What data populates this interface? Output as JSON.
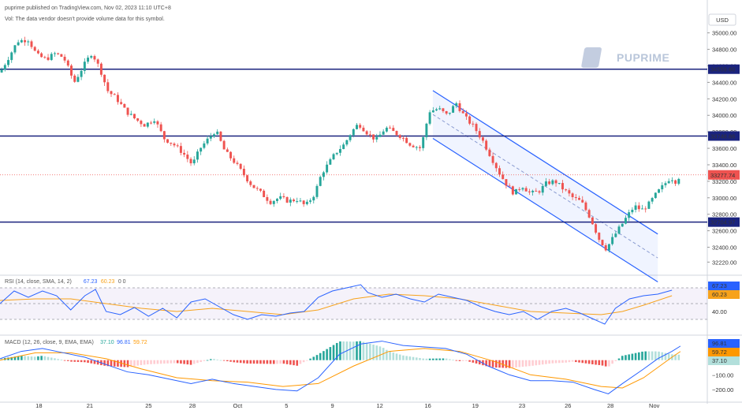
{
  "header": {
    "published": "puprime published on TradingView.com, Nov 02, 2023 11:10 UTC+8",
    "vol_note": "Vol: The data vendor doesn't provide volume data for this symbol.",
    "currency": "USD",
    "watermark": "PUPRIME"
  },
  "colors": {
    "up": "#26a69a",
    "down": "#ef5350",
    "level_line": "#1a237e",
    "channel": "#2962ff",
    "rsi_line": "#2962ff",
    "rsi_ma": "#f7a21b",
    "macd_line": "#2962ff",
    "signal_line": "#ff9800"
  },
  "chart_data": {
    "type": "candlestick",
    "symbol_unit": "USD",
    "y_range": [
      32080,
      35150
    ],
    "y_ticks": [
      "35000.00",
      "34800.00",
      "34600.00",
      "34400.00",
      "34200.00",
      "34000.00",
      "33800.00",
      "33600.00",
      "33400.00",
      "33200.00",
      "33000.00",
      "32800.00",
      "32600.00",
      "32400.00",
      "32220.00"
    ],
    "y_tick_values": [
      35000,
      34800,
      34600,
      34400,
      34200,
      34000,
      33800,
      33600,
      33400,
      33200,
      33000,
      32800,
      32600,
      32400,
      32220
    ],
    "x_labels": [
      "18",
      "21",
      "25",
      "28",
      "Oct",
      "5",
      "9",
      "12",
      "16",
      "19",
      "23",
      "26",
      "28",
      "Nov"
    ],
    "x_label_positions": [
      0.055,
      0.127,
      0.21,
      0.272,
      0.336,
      0.405,
      0.47,
      0.537,
      0.605,
      0.672,
      0.738,
      0.803,
      0.863,
      0.925
    ],
    "levels": [
      {
        "value": 34559.6,
        "label": "34559.60"
      },
      {
        "value": 33748.86,
        "label": "33748.86"
      },
      {
        "value": 32704.97,
        "label": "32704.97"
      }
    ],
    "current_price": {
      "value": 33277.74,
      "label": "33277.74"
    },
    "channel": {
      "upper": [
        [
          0.612,
          34300
        ],
        [
          0.93,
          32560
        ]
      ],
      "lower": [
        [
          0.612,
          33720
        ],
        [
          0.93,
          31980
        ]
      ],
      "mid": [
        [
          0.612,
          34010
        ],
        [
          0.93,
          32270
        ]
      ]
    },
    "price_path": [
      [
        0.0,
        34520
      ],
      [
        0.012,
        34700
      ],
      [
        0.025,
        34900
      ],
      [
        0.04,
        34920
      ],
      [
        0.052,
        34730
      ],
      [
        0.065,
        34680
      ],
      [
        0.078,
        34750
      ],
      [
        0.09,
        34700
      ],
      [
        0.105,
        34400
      ],
      [
        0.118,
        34600
      ],
      [
        0.13,
        34760
      ],
      [
        0.142,
        34550
      ],
      [
        0.152,
        34300
      ],
      [
        0.165,
        34200
      ],
      [
        0.178,
        34050
      ],
      [
        0.192,
        33950
      ],
      [
        0.205,
        33880
      ],
      [
        0.218,
        33960
      ],
      [
        0.232,
        33720
      ],
      [
        0.245,
        33650
      ],
      [
        0.258,
        33550
      ],
      [
        0.272,
        33400
      ],
      [
        0.283,
        33600
      ],
      [
        0.295,
        33720
      ],
      [
        0.305,
        33820
      ],
      [
        0.318,
        33560
      ],
      [
        0.33,
        33450
      ],
      [
        0.343,
        33300
      ],
      [
        0.356,
        33150
      ],
      [
        0.37,
        33050
      ],
      [
        0.382,
        32950
      ],
      [
        0.395,
        33000
      ],
      [
        0.408,
        32960
      ],
      [
        0.42,
        32980
      ],
      [
        0.432,
        32900
      ],
      [
        0.445,
        33050
      ],
      [
        0.455,
        33300
      ],
      [
        0.465,
        33420
      ],
      [
        0.475,
        33550
      ],
      [
        0.487,
        33650
      ],
      [
        0.497,
        33800
      ],
      [
        0.507,
        33900
      ],
      [
        0.52,
        33780
      ],
      [
        0.532,
        33700
      ],
      [
        0.545,
        33850
      ],
      [
        0.556,
        33800
      ],
      [
        0.568,
        33740
      ],
      [
        0.58,
        33650
      ],
      [
        0.595,
        33600
      ],
      [
        0.607,
        34050
      ],
      [
        0.62,
        34080
      ],
      [
        0.632,
        34000
      ],
      [
        0.645,
        34150
      ],
      [
        0.657,
        33980
      ],
      [
        0.67,
        33860
      ],
      [
        0.682,
        33700
      ],
      [
        0.694,
        33500
      ],
      [
        0.706,
        33300
      ],
      [
        0.717,
        33150
      ],
      [
        0.727,
        33050
      ],
      [
        0.738,
        33150
      ],
      [
        0.75,
        33050
      ],
      [
        0.762,
        33080
      ],
      [
        0.773,
        33180
      ],
      [
        0.785,
        33200
      ],
      [
        0.797,
        33100
      ],
      [
        0.81,
        33000
      ],
      [
        0.822,
        32950
      ],
      [
        0.835,
        32750
      ],
      [
        0.847,
        32500
      ],
      [
        0.857,
        32380
      ],
      [
        0.867,
        32520
      ],
      [
        0.877,
        32650
      ],
      [
        0.887,
        32780
      ],
      [
        0.897,
        32900
      ],
      [
        0.907,
        32850
      ],
      [
        0.917,
        32920
      ],
      [
        0.928,
        33050
      ],
      [
        0.938,
        33150
      ],
      [
        0.948,
        33250
      ],
      [
        0.955,
        33200
      ],
      [
        0.962,
        33277
      ]
    ],
    "rsi": {
      "label": "RSI (14, close, SMA, 14, 2)",
      "rsi_value": "67.23",
      "ma_value": "60.23",
      "flags": "0 0",
      "range": [
        15,
        85
      ],
      "ticks": [
        "40.00"
      ],
      "tick_values": [
        40
      ],
      "band_upper": 70,
      "band_lower": 30,
      "rsi_path": [
        [
          0.0,
          50
        ],
        [
          0.02,
          66
        ],
        [
          0.04,
          58
        ],
        [
          0.06,
          66
        ],
        [
          0.08,
          60
        ],
        [
          0.1,
          42
        ],
        [
          0.12,
          60
        ],
        [
          0.135,
          68
        ],
        [
          0.15,
          40
        ],
        [
          0.17,
          36
        ],
        [
          0.19,
          45
        ],
        [
          0.21,
          34
        ],
        [
          0.23,
          44
        ],
        [
          0.25,
          32
        ],
        [
          0.27,
          52
        ],
        [
          0.29,
          56
        ],
        [
          0.31,
          46
        ],
        [
          0.33,
          36
        ],
        [
          0.35,
          30
        ],
        [
          0.37,
          36
        ],
        [
          0.39,
          34
        ],
        [
          0.41,
          38
        ],
        [
          0.43,
          40
        ],
        [
          0.45,
          58
        ],
        [
          0.47,
          66
        ],
        [
          0.49,
          70
        ],
        [
          0.51,
          74
        ],
        [
          0.52,
          64
        ],
        [
          0.54,
          58
        ],
        [
          0.56,
          62
        ],
        [
          0.58,
          56
        ],
        [
          0.6,
          52
        ],
        [
          0.62,
          62
        ],
        [
          0.64,
          58
        ],
        [
          0.66,
          54
        ],
        [
          0.68,
          46
        ],
        [
          0.7,
          40
        ],
        [
          0.72,
          36
        ],
        [
          0.74,
          40
        ],
        [
          0.76,
          30
        ],
        [
          0.78,
          40
        ],
        [
          0.8,
          44
        ],
        [
          0.82,
          38
        ],
        [
          0.84,
          30
        ],
        [
          0.855,
          24
        ],
        [
          0.87,
          44
        ],
        [
          0.89,
          56
        ],
        [
          0.91,
          60
        ],
        [
          0.93,
          62
        ],
        [
          0.95,
          67
        ]
      ],
      "ma_path": [
        [
          0.0,
          54
        ],
        [
          0.05,
          56
        ],
        [
          0.1,
          56
        ],
        [
          0.15,
          50
        ],
        [
          0.2,
          44
        ],
        [
          0.25,
          40
        ],
        [
          0.3,
          44
        ],
        [
          0.35,
          40
        ],
        [
          0.4,
          36
        ],
        [
          0.45,
          42
        ],
        [
          0.5,
          56
        ],
        [
          0.55,
          62
        ],
        [
          0.6,
          60
        ],
        [
          0.65,
          56
        ],
        [
          0.7,
          48
        ],
        [
          0.75,
          40
        ],
        [
          0.8,
          38
        ],
        [
          0.85,
          36
        ],
        [
          0.88,
          40
        ],
        [
          0.91,
          48
        ],
        [
          0.95,
          60
        ]
      ]
    },
    "macd": {
      "label": "MACD (12, 26, close, 9, EMA, EMA)",
      "hist_value": "37.10",
      "macd_value": "96.81",
      "signal_value": "59.72",
      "range": [
        -260,
        160
      ],
      "ticks": [
        "0.00",
        "−100.00",
        "−200.00"
      ],
      "tick_values": [
        0,
        -100,
        -200
      ],
      "macd_path": [
        [
          0.0,
          10
        ],
        [
          0.03,
          60
        ],
        [
          0.06,
          80
        ],
        [
          0.09,
          50
        ],
        [
          0.12,
          20
        ],
        [
          0.15,
          -30
        ],
        [
          0.18,
          -80
        ],
        [
          0.21,
          -100
        ],
        [
          0.24,
          -130
        ],
        [
          0.27,
          -160
        ],
        [
          0.3,
          -130
        ],
        [
          0.33,
          -160
        ],
        [
          0.36,
          -180
        ],
        [
          0.39,
          -200
        ],
        [
          0.42,
          -210
        ],
        [
          0.45,
          -120
        ],
        [
          0.48,
          40
        ],
        [
          0.51,
          110
        ],
        [
          0.54,
          130
        ],
        [
          0.57,
          100
        ],
        [
          0.6,
          90
        ],
        [
          0.63,
          80
        ],
        [
          0.66,
          40
        ],
        [
          0.69,
          -40
        ],
        [
          0.72,
          -100
        ],
        [
          0.75,
          -140
        ],
        [
          0.78,
          -140
        ],
        [
          0.81,
          -150
        ],
        [
          0.84,
          -200
        ],
        [
          0.86,
          -230
        ],
        [
          0.88,
          -160
        ],
        [
          0.91,
          -60
        ],
        [
          0.93,
          10
        ],
        [
          0.95,
          60
        ],
        [
          0.962,
          96
        ]
      ],
      "signal_path": [
        [
          0.0,
          0
        ],
        [
          0.05,
          50
        ],
        [
          0.1,
          50
        ],
        [
          0.15,
          10
        ],
        [
          0.2,
          -60
        ],
        [
          0.25,
          -120
        ],
        [
          0.3,
          -140
        ],
        [
          0.35,
          -150
        ],
        [
          0.4,
          -180
        ],
        [
          0.45,
          -160
        ],
        [
          0.5,
          -40
        ],
        [
          0.55,
          60
        ],
        [
          0.6,
          80
        ],
        [
          0.65,
          60
        ],
        [
          0.7,
          -10
        ],
        [
          0.75,
          -100
        ],
        [
          0.8,
          -130
        ],
        [
          0.85,
          -180
        ],
        [
          0.88,
          -190
        ],
        [
          0.91,
          -120
        ],
        [
          0.95,
          20
        ],
        [
          0.962,
          59
        ]
      ]
    }
  }
}
